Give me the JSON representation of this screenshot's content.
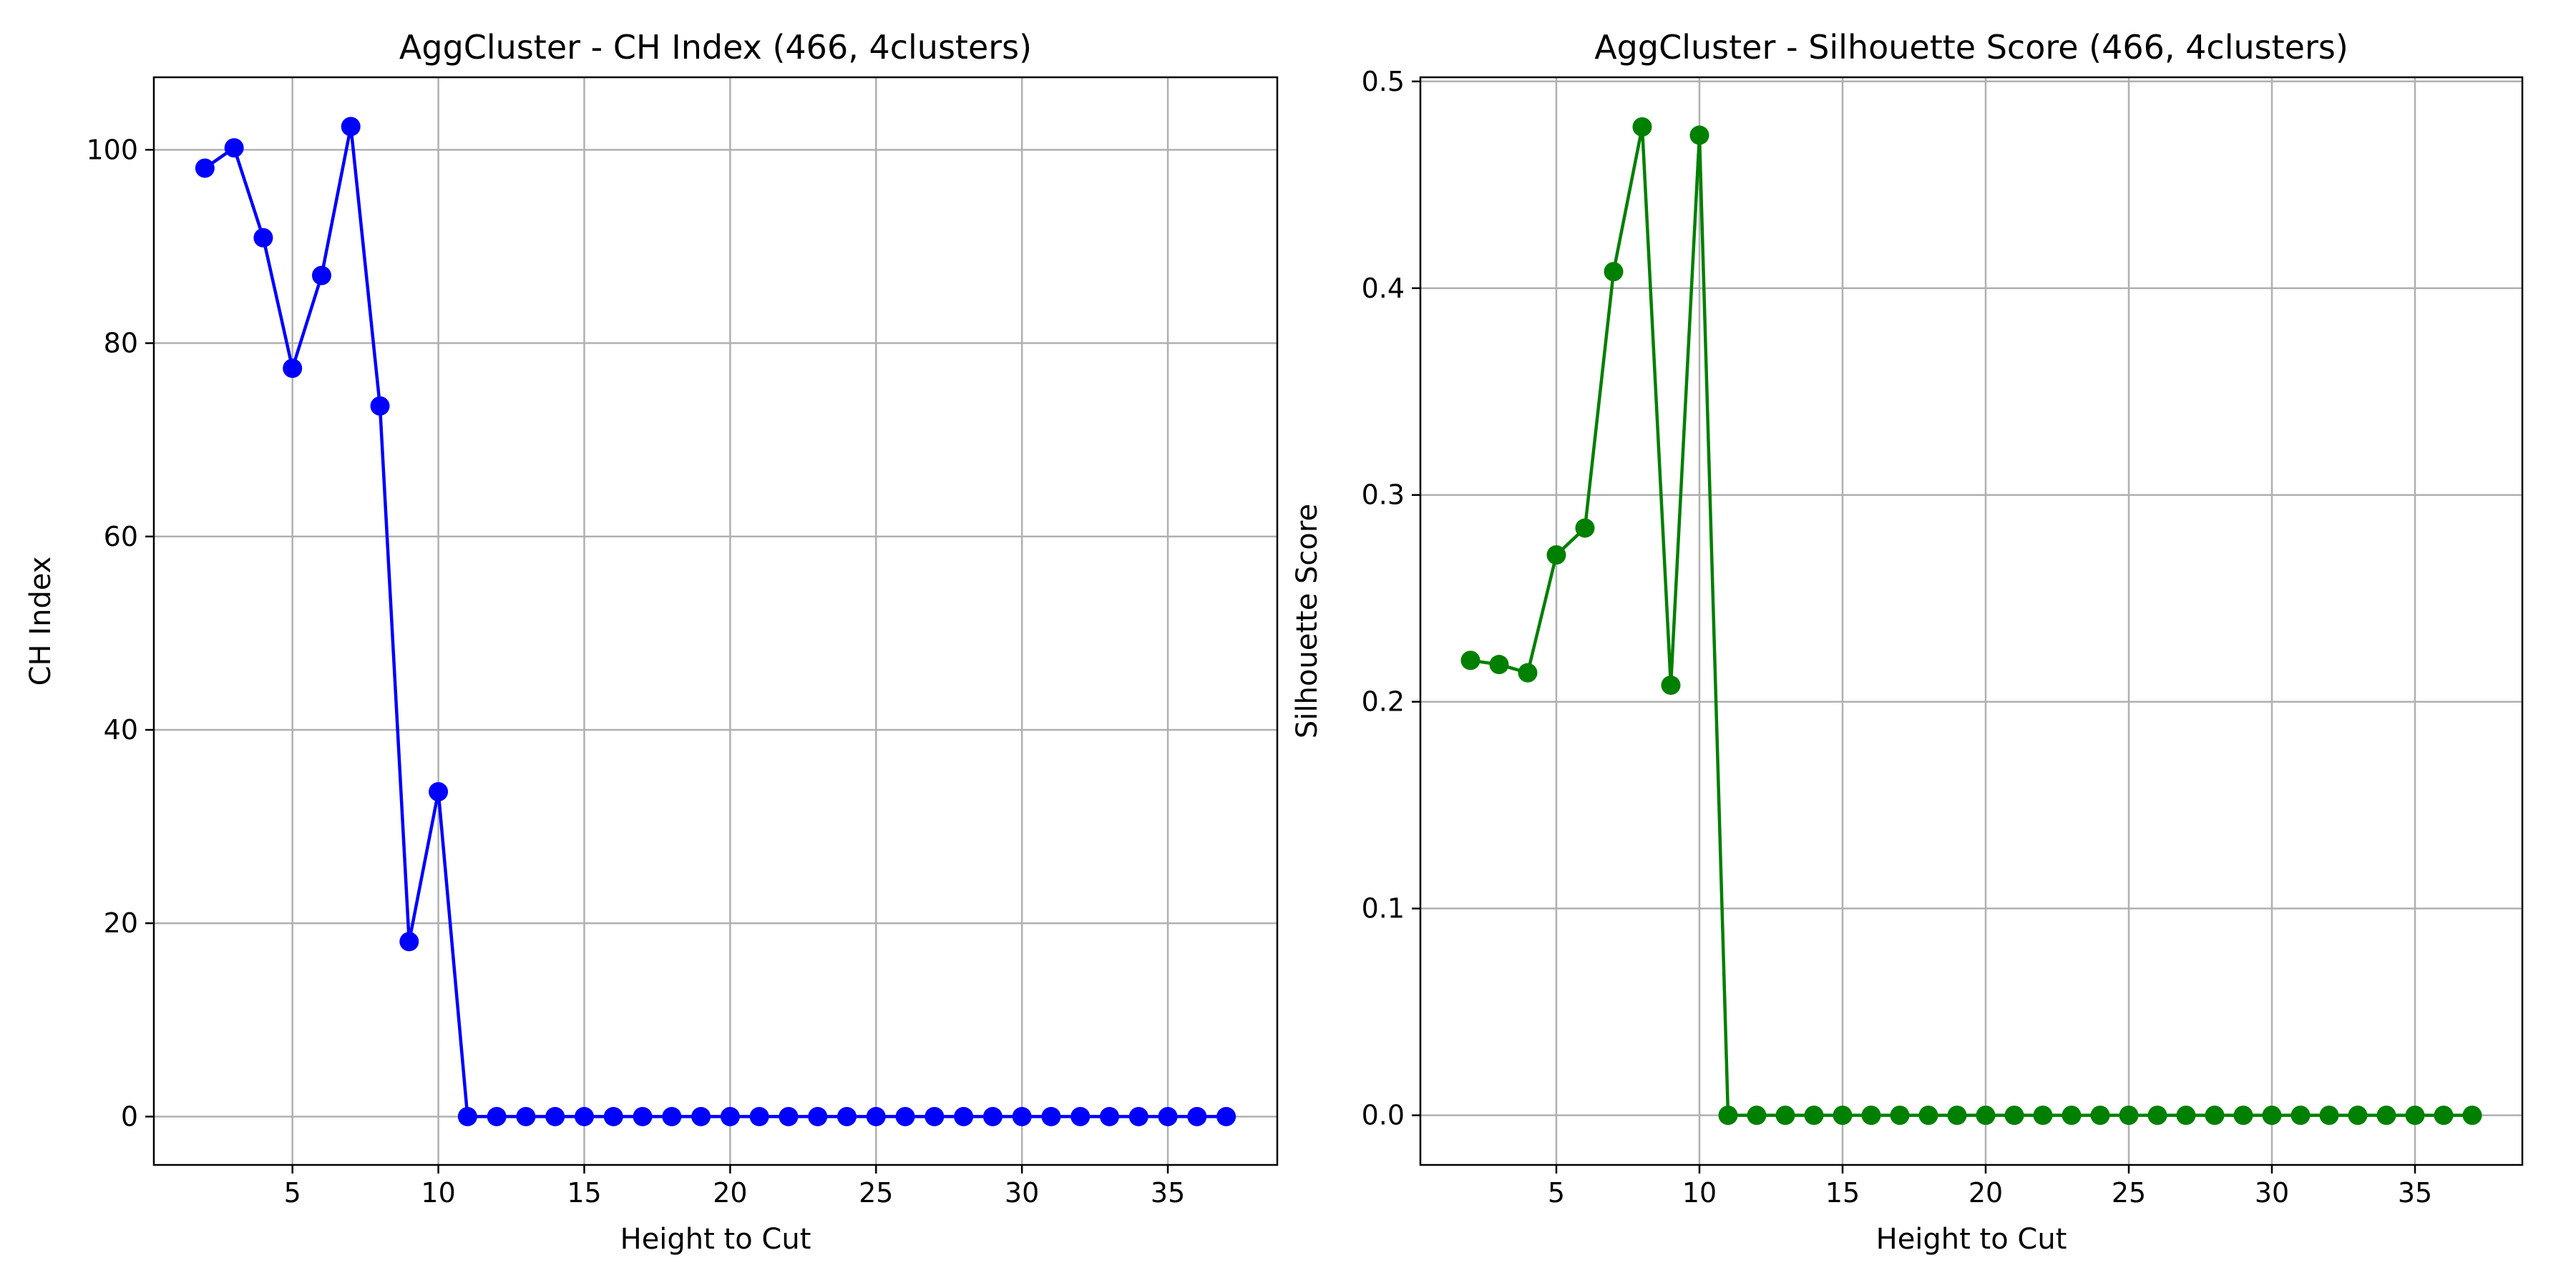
{
  "chart_data": [
    {
      "type": "line",
      "title": "AggCluster - CH Index (466, 4clusters)",
      "xlabel": "Height to Cut",
      "ylabel": "CH Index",
      "color": "#0000ff",
      "xlim": [
        0.25,
        38.75
      ],
      "ylim": [
        -5,
        107.5
      ],
      "xticks": [
        5,
        10,
        15,
        20,
        25,
        30,
        35
      ],
      "yticks": [
        0,
        20,
        40,
        60,
        80,
        100
      ],
      "grid": true,
      "marker": "circle",
      "x": [
        2,
        3,
        4,
        5,
        6,
        7,
        8,
        9,
        10,
        11,
        12,
        13,
        14,
        15,
        16,
        17,
        18,
        19,
        20,
        21,
        22,
        23,
        24,
        25,
        26,
        27,
        28,
        29,
        30,
        31,
        32,
        33,
        34,
        35,
        36,
        37
      ],
      "y": [
        98.1,
        100.2,
        90.9,
        77.4,
        87.0,
        102.4,
        73.5,
        18.1,
        33.6,
        0,
        0,
        0,
        0,
        0,
        0,
        0,
        0,
        0,
        0,
        0,
        0,
        0,
        0,
        0,
        0,
        0,
        0,
        0,
        0,
        0,
        0,
        0,
        0,
        0,
        0,
        0
      ]
    },
    {
      "type": "line",
      "title": "AggCluster - Silhouette Score (466, 4clusters)",
      "xlabel": "Height to Cut",
      "ylabel": "Silhouette Score",
      "color": "#008000",
      "xlim": [
        0.25,
        38.75
      ],
      "ylim": [
        -0.024,
        0.502
      ],
      "xticks": [
        5,
        10,
        15,
        20,
        25,
        30,
        35
      ],
      "yticks": [
        0.0,
        0.1,
        0.2,
        0.3,
        0.4,
        0.5
      ],
      "grid": true,
      "marker": "circle",
      "x": [
        2,
        3,
        4,
        5,
        6,
        7,
        8,
        9,
        10,
        11,
        12,
        13,
        14,
        15,
        16,
        17,
        18,
        19,
        20,
        21,
        22,
        23,
        24,
        25,
        26,
        27,
        28,
        29,
        30,
        31,
        32,
        33,
        34,
        35,
        36,
        37
      ],
      "y": [
        0.22,
        0.218,
        0.214,
        0.271,
        0.284,
        0.408,
        0.478,
        0.208,
        0.474,
        0,
        0,
        0,
        0,
        0,
        0,
        0,
        0,
        0,
        0,
        0,
        0,
        0,
        0,
        0,
        0,
        0,
        0,
        0,
        0,
        0,
        0,
        0,
        0,
        0,
        0,
        0
      ]
    }
  ]
}
